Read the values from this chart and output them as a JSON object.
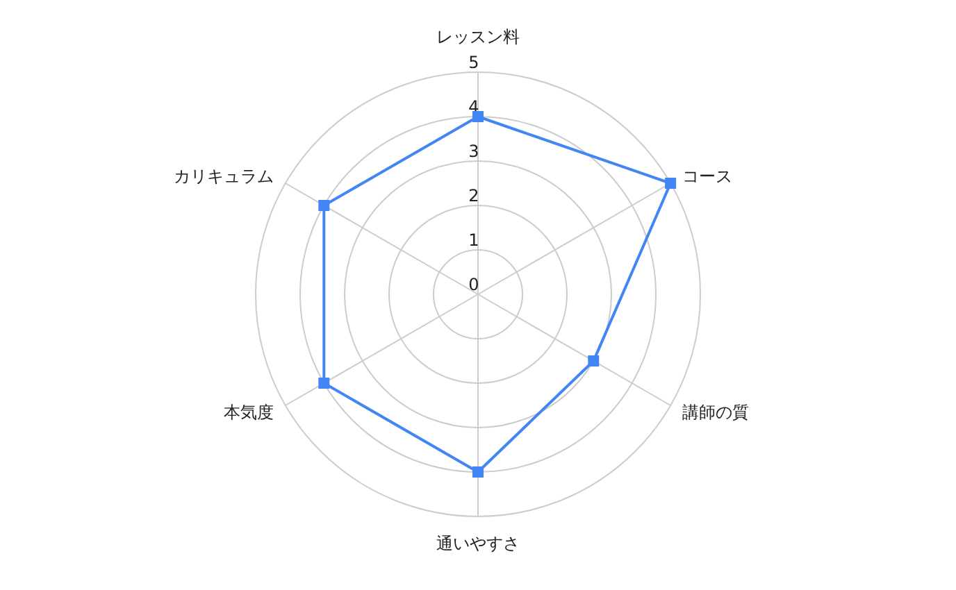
{
  "chart_data": {
    "type": "radar",
    "categories": [
      "レッスン料",
      "コース",
      "講師の質",
      "通いやすさ",
      "本気度",
      "カリキュラム"
    ],
    "series": [
      {
        "color": "#4285f4",
        "values": [
          4,
          5,
          3,
          4,
          4,
          4
        ]
      }
    ],
    "ylim": [
      0,
      5
    ],
    "yticks": [
      0,
      1,
      2,
      3,
      4,
      5
    ],
    "grid": true,
    "marker": "square",
    "line_style": "solid"
  }
}
